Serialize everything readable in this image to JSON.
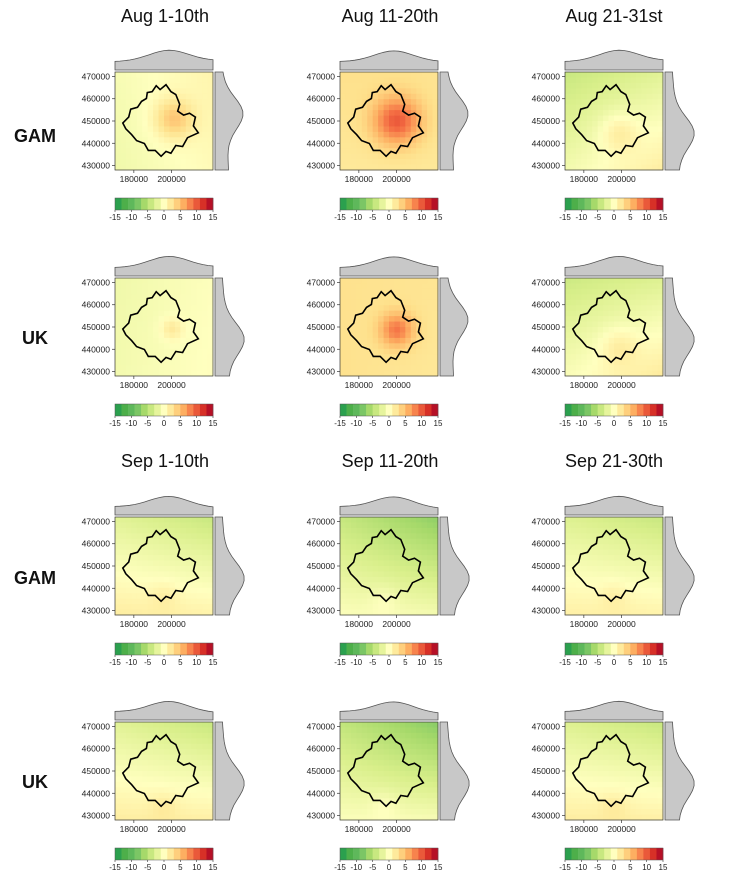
{
  "colors": {
    "ramp": [
      "#1a9850",
      "#4daf4a",
      "#66bd63",
      "#a6d96a",
      "#d9ef8b",
      "#ffffbf",
      "#fee08b",
      "#fdae61",
      "#f46d43",
      "#d73027",
      "#a50026"
    ],
    "density_fill": "#c8c8c8",
    "density_stroke": "#555555",
    "boundary": "#000000"
  },
  "column_titles": [
    "Aug 1-10th",
    "Aug 11-20th",
    "Aug 21-31st",
    "Sep 1-10th",
    "Sep 11-20th",
    "Sep 21-30th"
  ],
  "row_labels": [
    "GAM",
    "UK",
    "GAM",
    "UK"
  ],
  "chart_data": {
    "type": "heatmap",
    "description_grid": "3 columns x 4 rows of spatial maps",
    "x_ticks": [
      "180000",
      "200000"
    ],
    "y_ticks": [
      "470000",
      "460000",
      "450000",
      "440000",
      "430000"
    ],
    "xlim": [
      170000,
      222000
    ],
    "ylim": [
      428000,
      472000
    ],
    "colorbar": {
      "min": -15,
      "max": 15,
      "ticks": [
        "-15",
        "-10",
        "-5",
        "0",
        "5",
        "10",
        "15"
      ]
    },
    "panels": [
      {
        "period": "Aug 1-10th",
        "model": "GAM",
        "bg": 1.6,
        "tl": -2.5,
        "tr": 0.5,
        "bl": -3.5,
        "br": -0.5,
        "hot": [
          0.6,
          0.48,
          4.5,
          0.14
        ]
      },
      {
        "period": "Aug 11-20th",
        "model": "GAM",
        "bg": 3.5,
        "tl": 2.5,
        "tr": 2.0,
        "bl": 1.0,
        "br": 1.2,
        "hot": [
          0.58,
          0.5,
          7.5,
          0.17
        ]
      },
      {
        "period": "Aug 21-31st",
        "model": "GAM",
        "bg": -1.0,
        "tl": -6.5,
        "tr": -3.5,
        "bl": -1.0,
        "br": 4.0,
        "hot": [
          0.55,
          0.62,
          2.5,
          0.14
        ]
      },
      {
        "period": "Aug 1-10th",
        "model": "UK",
        "bg": 0.3,
        "tl": -2.5,
        "tr": -0.5,
        "bl": -2.0,
        "br": 0.0,
        "hot": [
          0.58,
          0.52,
          2.5,
          0.08
        ]
      },
      {
        "period": "Aug 11-20th",
        "model": "UK",
        "bg": 3.2,
        "tl": 2.5,
        "tr": 2.0,
        "bl": 2.5,
        "br": 1.5,
        "hot": [
          0.58,
          0.53,
          6.0,
          0.12
        ]
      },
      {
        "period": "Aug 21-31st",
        "model": "UK",
        "bg": -1.0,
        "tl": -6.0,
        "tr": -4.0,
        "bl": 0.0,
        "br": 4.5,
        "hot": [
          0.55,
          0.7,
          2.0,
          0.14
        ]
      },
      {
        "period": "Sep 1-10th",
        "model": "GAM",
        "bg": -1.0,
        "tl": -3.5,
        "tr": -6.5,
        "bl": 4.0,
        "br": 3.0,
        "hot": [
          0.5,
          0.8,
          1.0,
          0.1
        ]
      },
      {
        "period": "Sep 11-20th",
        "model": "GAM",
        "bg": -3.0,
        "tl": -5.0,
        "tr": -10.5,
        "bl": 2.0,
        "br": 1.0,
        "hot": [
          0.45,
          0.85,
          1.0,
          0.1
        ]
      },
      {
        "period": "Sep 21-30th",
        "model": "GAM",
        "bg": -1.0,
        "tl": -4.0,
        "tr": -6.5,
        "bl": 3.5,
        "br": 3.0,
        "hot": [
          0.5,
          0.8,
          1.0,
          0.1
        ]
      },
      {
        "period": "Sep 1-10th",
        "model": "UK",
        "bg": -1.0,
        "tl": -3.5,
        "tr": -6.5,
        "bl": 4.0,
        "br": 3.5,
        "hot": [
          0.5,
          0.85,
          1.0,
          0.1
        ]
      },
      {
        "period": "Sep 11-20th",
        "model": "UK",
        "bg": -3.0,
        "tl": -5.5,
        "tr": -11.0,
        "bl": 2.0,
        "br": 1.5,
        "hot": [
          0.45,
          0.85,
          1.0,
          0.1
        ]
      },
      {
        "period": "Sep 21-30th",
        "model": "UK",
        "bg": -1.0,
        "tl": -4.0,
        "tr": -6.5,
        "bl": 4.0,
        "br": 3.5,
        "hot": [
          0.5,
          0.85,
          1.0,
          0.1
        ]
      }
    ]
  }
}
